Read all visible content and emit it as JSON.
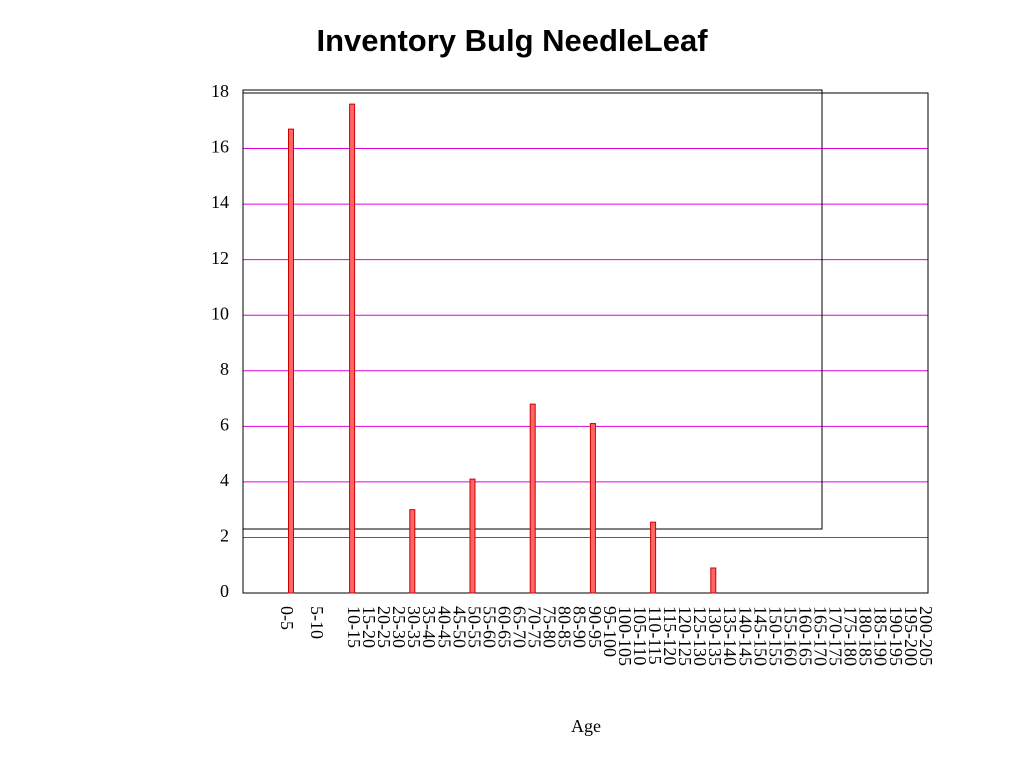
{
  "chart_data": {
    "type": "bar",
    "title": "Inventory Bulg NeedleLeaf",
    "x_label": "Age",
    "categories": [
      "0-5",
      "5-10",
      "10-15",
      "15-20",
      "20-25",
      "25-30",
      "30-35",
      "35-40",
      "40-45",
      "45-50",
      "50-55",
      "55-60",
      "60-65",
      "65-70",
      "70-75",
      "75-80",
      "80-85",
      "85-90",
      "90-95",
      "95-100",
      "100-105",
      "105-110",
      "110-115",
      "115-120",
      "120-125",
      "125-130",
      "130-135",
      "135-140",
      "140-145",
      "145-150",
      "150-155",
      "155-160",
      "160-165",
      "165-170",
      "170-175",
      "175-180",
      "180-185",
      "185-190",
      "190-195",
      "195-200",
      "200-205"
    ],
    "values": [
      16.7,
      0,
      17.6,
      0,
      0,
      0,
      3.0,
      0,
      0,
      0,
      4.1,
      0,
      0,
      0,
      6.8,
      0,
      0,
      0,
      6.1,
      0,
      0,
      0,
      2.55,
      0,
      0,
      0,
      0.9,
      0,
      0,
      0,
      0,
      0,
      0,
      0,
      0,
      0,
      0,
      0,
      0,
      0,
      0
    ],
    "color": "#ff6666",
    "ylim": [
      0,
      18
    ],
    "yticks": [
      0,
      2,
      4,
      6,
      8,
      10,
      12,
      14,
      16,
      18
    ],
    "grid": true
  }
}
